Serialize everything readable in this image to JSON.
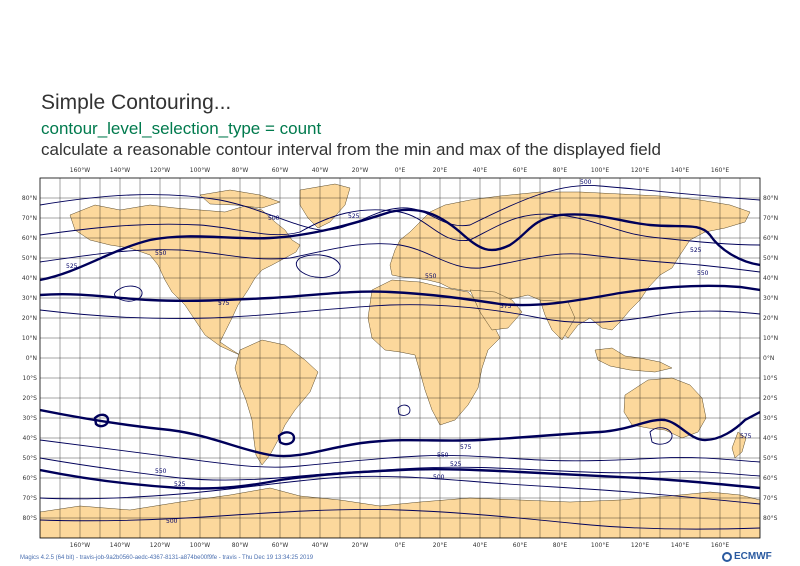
{
  "title": {
    "line1": "Simple Contouring...",
    "line2": "contour_level_selection_type = count",
    "line3": "calculate a reasonable  contour interval from the min and max of the displayed field"
  },
  "footer": "Magics 4.2.5 (64 bit) - travis-job-9a2b0560-aedc-4367-8131-a874be00f9fe - travis - Thu Dec 19 13:34:25 2019",
  "logo": "ECMWF",
  "map": {
    "lon_labels": [
      "160°W",
      "140°W",
      "120°W",
      "100°W",
      "80°W",
      "60°W",
      "40°W",
      "20°W",
      "0°E",
      "20°E",
      "40°E",
      "60°E",
      "80°E",
      "100°E",
      "120°E",
      "140°E",
      "160°E"
    ],
    "lat_labels": [
      "80°N",
      "70°N",
      "60°N",
      "50°N",
      "40°N",
      "30°N",
      "20°N",
      "10°N",
      "0°N",
      "10°S",
      "20°S",
      "30°S",
      "40°S",
      "50°S",
      "60°S",
      "70°S",
      "80°S"
    ],
    "contour_labels": [
      "500",
      "525",
      "550",
      "575",
      "550",
      "525",
      "500",
      "550",
      "525",
      "575",
      "575",
      "550",
      "525",
      "500",
      "500",
      "550",
      "525",
      "575"
    ],
    "colors": {
      "land": "#fcd89c",
      "coast": "#5a4a2a",
      "contour": "#00005a",
      "grid": "#000000"
    }
  }
}
